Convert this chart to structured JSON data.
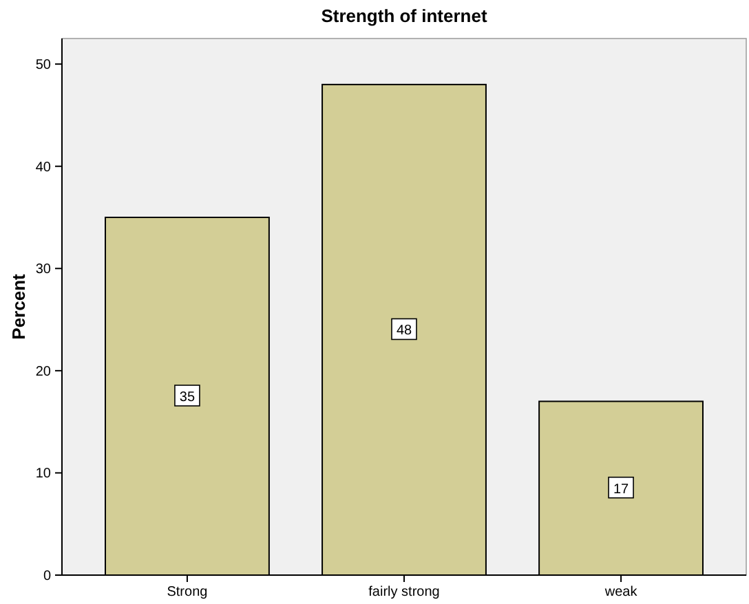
{
  "chart_data": {
    "type": "bar",
    "title": "Strength of internet",
    "ylabel": "Percent",
    "categories": [
      "Strong",
      "fairly strong",
      "weak"
    ],
    "values": [
      35,
      48,
      17
    ],
    "color": "#d3ce96",
    "ylim": [
      0,
      52.5
    ],
    "yticks": [
      0,
      10,
      20,
      30,
      40,
      50
    ],
    "data_labels": true,
    "grid": false
  }
}
